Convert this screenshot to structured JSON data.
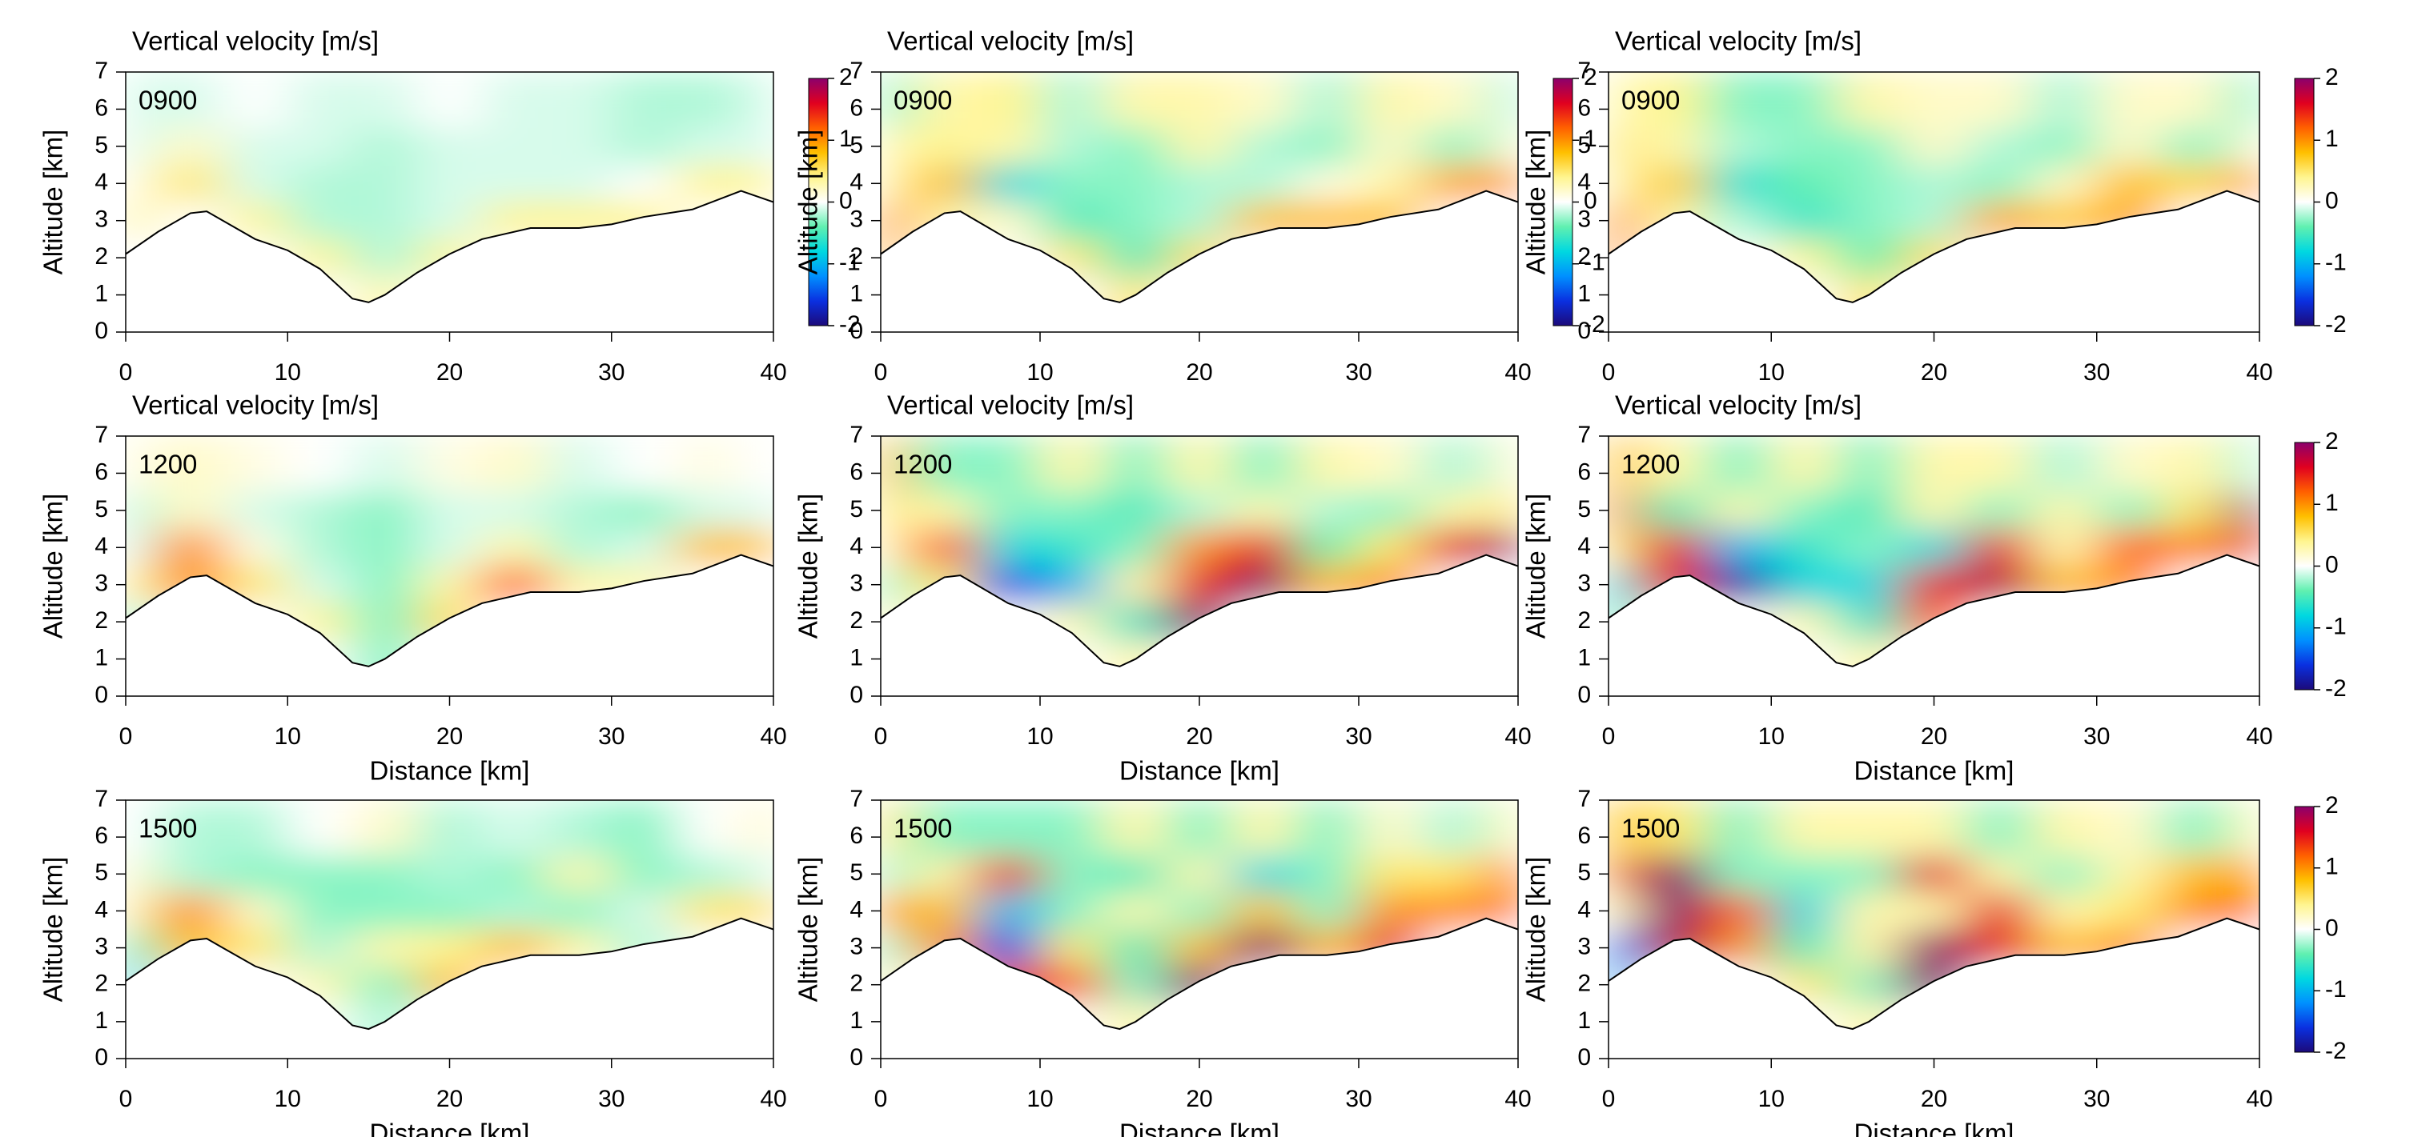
{
  "chart_data": [
    {
      "type": "heatmap",
      "title": "Vertical velocity [m/s]",
      "label": "0900",
      "ylabel": "Altitude [km]",
      "colorbar": true,
      "x": [
        0,
        4,
        8,
        12,
        16,
        20,
        24,
        28,
        32,
        36,
        40
      ],
      "y": [
        1,
        2,
        3,
        4,
        5,
        6
      ],
      "xlim": [
        0,
        40
      ],
      "ylim": [
        0,
        7
      ],
      "xticks": [
        0,
        10,
        20,
        30,
        40
      ],
      "yticks": [
        0,
        1,
        2,
        3,
        4,
        5,
        6,
        7
      ],
      "z": [
        [
          0,
          0,
          0,
          0,
          0.3,
          0,
          0,
          0,
          0,
          0,
          0
        ],
        [
          0,
          0,
          0,
          0.4,
          -0.2,
          0.4,
          0,
          0,
          0,
          0,
          0
        ],
        [
          0.4,
          0,
          0.4,
          -0.2,
          -0.2,
          -0.1,
          0.4,
          0.4,
          0.4,
          0,
          0
        ],
        [
          0.1,
          0.5,
          -0.1,
          -0.2,
          -0.2,
          -0.1,
          -0.1,
          -0.1,
          0,
          0.4,
          0.4
        ],
        [
          -0.1,
          0.2,
          -0.1,
          -0.1,
          -0.2,
          -0.1,
          -0.1,
          -0.1,
          -0.2,
          -0.1,
          -0.1
        ],
        [
          -0.1,
          -0.1,
          0,
          -0.1,
          -0.1,
          0,
          -0.1,
          -0.1,
          -0.2,
          -0.2,
          -0.1
        ]
      ]
    },
    {
      "type": "heatmap",
      "title": "Vertical velocity [m/s]",
      "label": "0900",
      "ylabel": "Altitude [km]",
      "colorbar": true,
      "x": [
        0,
        4,
        8,
        12,
        16,
        20,
        24,
        28,
        32,
        36,
        40
      ],
      "y": [
        1,
        2,
        3,
        4,
        5,
        6
      ],
      "xlim": [
        0,
        40
      ],
      "ylim": [
        0,
        7
      ],
      "xticks": [
        0,
        10,
        20,
        30,
        40
      ],
      "yticks": [
        0,
        1,
        2,
        3,
        4,
        5,
        6,
        7
      ],
      "z": [
        [
          0,
          0,
          0,
          0,
          0.5,
          0,
          0,
          0,
          0,
          0,
          0
        ],
        [
          0.8,
          0,
          0,
          0.5,
          -0.5,
          0.6,
          0,
          0,
          0,
          0,
          0
        ],
        [
          1.0,
          0.3,
          0.2,
          -0.5,
          -0.3,
          -0.2,
          0.8,
          0.8,
          0.8,
          0,
          0
        ],
        [
          0.3,
          0.8,
          -0.8,
          -0.3,
          -0.3,
          -0.2,
          -0.2,
          0.1,
          0.3,
          0.9,
          1.0
        ],
        [
          0.3,
          0.4,
          0.3,
          -0.2,
          -0.3,
          0.3,
          -0.2,
          -0.3,
          0.2,
          -0.3,
          0.2
        ],
        [
          -0.3,
          0.3,
          0.4,
          -0.2,
          0.3,
          0.3,
          0.2,
          -0.2,
          0.3,
          0.2,
          -0.2
        ]
      ]
    },
    {
      "type": "heatmap",
      "title": "Vertical velocity [m/s]",
      "label": "0900",
      "ylabel": "Altitude [km]",
      "colorbar": true,
      "x": [
        0,
        4,
        8,
        12,
        16,
        20,
        24,
        28,
        32,
        36,
        40
      ],
      "y": [
        1,
        2,
        3,
        4,
        5,
        6
      ],
      "xlim": [
        0,
        40
      ],
      "ylim": [
        0,
        7
      ],
      "xticks": [
        0,
        10,
        20,
        30,
        40
      ],
      "yticks": [
        0,
        1,
        2,
        3,
        4,
        5,
        6,
        7
      ],
      "z": [
        [
          0,
          0,
          0,
          0,
          0.5,
          0,
          0,
          0,
          0,
          0,
          0
        ],
        [
          0.9,
          0,
          0,
          0.4,
          -0.4,
          0.6,
          0,
          0,
          0,
          0,
          0
        ],
        [
          1.0,
          0.3,
          -0.2,
          -0.6,
          -0.3,
          -0.2,
          0.9,
          0.7,
          0.9,
          0,
          0
        ],
        [
          0.3,
          0.7,
          -0.7,
          -0.4,
          -0.3,
          -0.2,
          -0.3,
          0.2,
          0.8,
          0.6,
          1.0
        ],
        [
          0.5,
          0.3,
          -0.2,
          -0.3,
          -0.3,
          0.2,
          -0.2,
          -0.3,
          0.2,
          -0.3,
          0.2
        ],
        [
          0.3,
          0.4,
          -0.3,
          -0.3,
          0.3,
          0.2,
          0.2,
          -0.2,
          0.2,
          0.2,
          -0.3
        ]
      ]
    },
    {
      "type": "heatmap",
      "title": "Vertical velocity [m/s]",
      "label": "1200",
      "ylabel": "Altitude [km]",
      "xlabel": "Distance [km]",
      "x": [
        0,
        4,
        8,
        12,
        16,
        20,
        24,
        28,
        32,
        36,
        40
      ],
      "y": [
        1,
        2,
        3,
        4,
        5,
        6
      ],
      "xlim": [
        0,
        40
      ],
      "ylim": [
        0,
        7
      ],
      "xticks": [
        0,
        10,
        20,
        30,
        40
      ],
      "yticks": [
        0,
        1,
        2,
        3,
        4,
        5,
        6,
        7
      ],
      "z": [
        [
          0,
          0,
          0,
          0,
          -0.3,
          0,
          0,
          0,
          0,
          0,
          0
        ],
        [
          -0.3,
          0,
          0,
          0.4,
          -0.3,
          0.6,
          0,
          0,
          0,
          0,
          0
        ],
        [
          0.4,
          1.0,
          0.5,
          -0.1,
          -0.3,
          0.3,
          1.2,
          0.3,
          0.3,
          0,
          0
        ],
        [
          -0.1,
          1.0,
          0.1,
          -0.2,
          -0.3,
          -0.1,
          0.3,
          -0.2,
          -0.1,
          0.8,
          0.8
        ],
        [
          -0.2,
          0.2,
          -0.1,
          -0.2,
          -0.3,
          -0.1,
          -0.1,
          -0.2,
          -0.3,
          -0.1,
          -0.1
        ],
        [
          0.1,
          0.2,
          0.1,
          0,
          -0.1,
          0.1,
          0.2,
          -0.1,
          0,
          0.1,
          0
        ]
      ]
    },
    {
      "type": "heatmap",
      "title": "Vertical velocity [m/s]",
      "label": "1200",
      "ylabel": "Altitude [km]",
      "xlabel": "Distance [km]",
      "x": [
        0,
        4,
        8,
        12,
        16,
        20,
        24,
        28,
        32,
        36,
        40
      ],
      "y": [
        1,
        2,
        3,
        4,
        5,
        6
      ],
      "xlim": [
        0,
        40
      ],
      "ylim": [
        0,
        7
      ],
      "xticks": [
        0,
        10,
        20,
        30,
        40
      ],
      "yticks": [
        0,
        1,
        2,
        3,
        4,
        5,
        6,
        7
      ],
      "z": [
        [
          0,
          0,
          0,
          0,
          0.3,
          0,
          0,
          0,
          0,
          0,
          0
        ],
        [
          0.3,
          0,
          0,
          0.3,
          -0.6,
          2,
          0,
          0,
          0,
          0,
          0
        ],
        [
          -0.3,
          0.5,
          -1.5,
          -1.0,
          0.3,
          1.5,
          2,
          0.8,
          1.0,
          0,
          0
        ],
        [
          0.3,
          1.2,
          -0.8,
          -0.6,
          -0.3,
          1.0,
          1.5,
          -0.4,
          0.5,
          1.5,
          2
        ],
        [
          0.5,
          0.3,
          -0.3,
          -0.3,
          -0.5,
          -0.2,
          0.3,
          -0.2,
          -0.3,
          0.3,
          0.5
        ],
        [
          0.8,
          -0.3,
          -0.3,
          0.3,
          -0.3,
          0.3,
          -0.3,
          0.3,
          0.2,
          -0.2,
          0.2
        ]
      ]
    },
    {
      "type": "heatmap",
      "title": "Vertical velocity [m/s]",
      "label": "1200",
      "ylabel": "Altitude [km]",
      "xlabel": "Distance [km]",
      "colorbar": true,
      "x": [
        0,
        4,
        8,
        12,
        16,
        20,
        24,
        28,
        32,
        36,
        40
      ],
      "y": [
        1,
        2,
        3,
        4,
        5,
        6
      ],
      "xlim": [
        0,
        40
      ],
      "ylim": [
        0,
        7
      ],
      "xticks": [
        0,
        10,
        20,
        30,
        40
      ],
      "yticks": [
        0,
        1,
        2,
        3,
        4,
        5,
        6,
        7
      ],
      "z": [
        [
          0,
          0,
          0,
          0,
          0.3,
          0,
          0,
          0,
          0,
          0,
          0
        ],
        [
          -0.5,
          0,
          0,
          0.3,
          -0.6,
          1.2,
          0,
          0,
          0,
          0,
          0
        ],
        [
          -0.8,
          1.5,
          -1.8,
          -0.8,
          -0.8,
          1.5,
          1.8,
          0.8,
          1.0,
          0,
          0
        ],
        [
          0.5,
          1.5,
          -1.0,
          -0.6,
          -0.3,
          -0.8,
          1.5,
          0.3,
          1.2,
          1.0,
          1.5
        ],
        [
          1.0,
          -0.5,
          0.3,
          -0.3,
          -0.5,
          0.3,
          -0.3,
          0.3,
          -0.3,
          0.5,
          2
        ],
        [
          0.8,
          0.3,
          -0.3,
          0.3,
          -0.3,
          0.3,
          0.3,
          -0.2,
          0.2,
          0.3,
          -0.2
        ]
      ]
    },
    {
      "type": "heatmap",
      "label": "1500",
      "ylabel": "Altitude [km]",
      "xlabel": "Distance [km]",
      "x": [
        0,
        4,
        8,
        12,
        16,
        20,
        24,
        28,
        32,
        36,
        40
      ],
      "y": [
        1,
        2,
        3,
        4,
        5,
        6
      ],
      "xlim": [
        0,
        40
      ],
      "ylim": [
        0,
        7
      ],
      "xticks": [
        0,
        10,
        20,
        30,
        40
      ],
      "yticks": [
        0,
        1,
        2,
        3,
        4,
        5,
        6,
        7
      ],
      "z": [
        [
          0,
          0,
          0,
          0,
          -0.2,
          0,
          0,
          0,
          0,
          0,
          0
        ],
        [
          -0.8,
          0,
          0,
          0.3,
          -0.3,
          0.8,
          0,
          0,
          0,
          0,
          0
        ],
        [
          -0.5,
          0.8,
          0.5,
          -0.2,
          0.3,
          0.4,
          0.8,
          0.3,
          -0.2,
          0,
          0
        ],
        [
          0.3,
          1.0,
          0.2,
          -0.3,
          -0.3,
          -0.3,
          -0.2,
          -0.3,
          -0.1,
          0.5,
          0.6
        ],
        [
          0.2,
          -0.2,
          -0.3,
          -0.3,
          -0.3,
          -0.2,
          -0.3,
          0.3,
          -0.3,
          -0.2,
          -0.1
        ],
        [
          0,
          -0.2,
          -0.2,
          0,
          0.2,
          -0.2,
          -0.1,
          -0.2,
          -0.3,
          0,
          0.2
        ]
      ]
    },
    {
      "type": "heatmap",
      "label": "1500",
      "ylabel": "Altitude [km]",
      "xlabel": "Distance [km]",
      "x": [
        0,
        4,
        8,
        12,
        16,
        20,
        24,
        28,
        32,
        36,
        40
      ],
      "y": [
        1,
        2,
        3,
        4,
        5,
        6
      ],
      "xlim": [
        0,
        40
      ],
      "ylim": [
        0,
        7
      ],
      "xticks": [
        0,
        10,
        20,
        30,
        40
      ],
      "yticks": [
        0,
        1,
        2,
        3,
        4,
        5,
        6,
        7
      ],
      "z": [
        [
          0,
          0,
          0,
          0,
          0.3,
          0,
          0,
          0,
          0,
          0,
          0
        ],
        [
          0.3,
          0,
          1.5,
          1.2,
          -0.3,
          2,
          0,
          0,
          0,
          0,
          0
        ],
        [
          -0.3,
          1.0,
          -1.5,
          0.5,
          -0.5,
          0.8,
          2,
          0.8,
          1.5,
          0,
          0
        ],
        [
          1.0,
          0.8,
          -1.0,
          -0.3,
          0.3,
          -0.3,
          0.8,
          -0.3,
          1.0,
          1.0,
          1.2
        ],
        [
          -0.3,
          0.3,
          1.5,
          -0.3,
          -0.5,
          0.3,
          -0.8,
          -0.3,
          0.5,
          0.5,
          1.2
        ],
        [
          0.5,
          -0.3,
          -0.3,
          -0.3,
          0.3,
          -0.3,
          0.3,
          -0.3,
          0.2,
          -0.2,
          0.3
        ]
      ]
    },
    {
      "type": "heatmap",
      "label": "1500",
      "ylabel": "Altitude [km]",
      "xlabel": "Distance [km]",
      "colorbar": true,
      "x": [
        0,
        4,
        8,
        12,
        16,
        20,
        24,
        28,
        32,
        36,
        40
      ],
      "y": [
        1,
        2,
        3,
        4,
        5,
        6
      ],
      "xlim": [
        0,
        40
      ],
      "ylim": [
        0,
        7
      ],
      "xticks": [
        0,
        10,
        20,
        30,
        40
      ],
      "yticks": [
        0,
        1,
        2,
        3,
        4,
        5,
        6,
        7
      ],
      "z": [
        [
          0,
          0,
          0,
          0,
          0.3,
          0,
          0,
          0,
          0,
          0,
          0
        ],
        [
          -1.0,
          0,
          0,
          0.5,
          -0.3,
          2,
          0,
          0,
          0,
          0,
          0
        ],
        [
          -1.2,
          1.8,
          1.0,
          -0.5,
          0.3,
          2,
          1.5,
          0.8,
          1.0,
          0,
          0
        ],
        [
          0.3,
          2,
          1.2,
          -0.8,
          0.3,
          0.3,
          1.5,
          0.3,
          0.5,
          1.0,
          1.2
        ],
        [
          1.0,
          2,
          -0.3,
          -0.3,
          -0.3,
          1.5,
          0.3,
          -0.3,
          0.3,
          0.8,
          1.0
        ],
        [
          0.8,
          0.5,
          -0.3,
          0.3,
          0.3,
          0.3,
          -0.3,
          0.3,
          0.2,
          -0.3,
          0.3
        ]
      ]
    }
  ],
  "terrain": {
    "x": [
      0,
      2,
      4,
      5,
      6,
      8,
      10,
      12,
      14,
      15,
      16,
      18,
      20,
      22,
      25,
      28,
      30,
      32,
      35,
      38,
      40
    ],
    "altitude": [
      2.1,
      2.7,
      3.2,
      3.25,
      3.0,
      2.5,
      2.2,
      1.7,
      0.9,
      0.8,
      1.0,
      1.6,
      2.1,
      2.5,
      2.8,
      2.8,
      2.9,
      3.1,
      3.3,
      3.8,
      3.5
    ]
  },
  "colorbar": {
    "lim": [
      -2,
      2
    ],
    "ticks": [
      -2,
      -1,
      0,
      1,
      2
    ],
    "colors": [
      "#1c0a7a",
      "#0a30e0",
      "#0090ff",
      "#00d8e0",
      "#60f0b0",
      "#ffffff",
      "#fff590",
      "#ffc000",
      "#ff6000",
      "#e00020",
      "#8c006c"
    ]
  }
}
